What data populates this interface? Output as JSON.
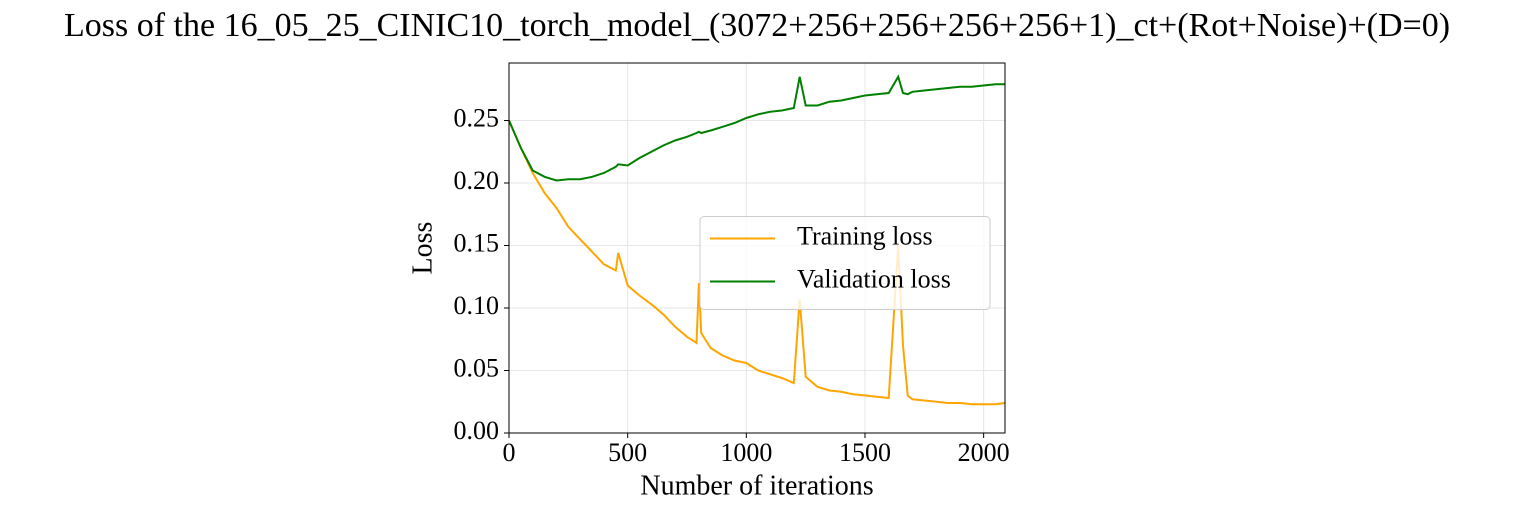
{
  "chart_data": {
    "type": "line",
    "title": "Loss of the 16_05_25_CINIC10_torch_model_(3072+256+256+256+256+1)_ct+(Rot+Noise)+(D=0)",
    "xlabel": "Number of iterations",
    "ylabel": "Loss",
    "x": [
      0,
      50,
      100,
      150,
      200,
      250,
      300,
      350,
      400,
      450,
      460,
      500,
      550,
      600,
      650,
      700,
      750,
      790,
      800,
      810,
      850,
      900,
      950,
      1000,
      1050,
      1100,
      1150,
      1200,
      1225,
      1250,
      1300,
      1350,
      1400,
      1450,
      1500,
      1550,
      1600,
      1640,
      1660,
      1680,
      1700,
      1750,
      1800,
      1850,
      1900,
      1950,
      2000,
      2050,
      2090
    ],
    "series": [
      {
        "name": "Training loss",
        "color": "#ffa500",
        "values": [
          0.25,
          0.228,
          0.208,
          0.192,
          0.18,
          0.165,
          0.155,
          0.145,
          0.135,
          0.13,
          0.144,
          0.118,
          0.11,
          0.103,
          0.095,
          0.085,
          0.077,
          0.072,
          0.12,
          0.08,
          0.068,
          0.062,
          0.058,
          0.056,
          0.05,
          0.047,
          0.044,
          0.04,
          0.107,
          0.045,
          0.037,
          0.034,
          0.033,
          0.031,
          0.03,
          0.029,
          0.028,
          0.15,
          0.07,
          0.03,
          0.027,
          0.026,
          0.025,
          0.024,
          0.024,
          0.023,
          0.023,
          0.023,
          0.024
        ]
      },
      {
        "name": "Validation loss",
        "color": "#008000",
        "values": [
          0.25,
          0.228,
          0.21,
          0.205,
          0.202,
          0.203,
          0.203,
          0.205,
          0.208,
          0.213,
          0.215,
          0.214,
          0.22,
          0.225,
          0.23,
          0.234,
          0.237,
          0.24,
          0.241,
          0.24,
          0.242,
          0.245,
          0.248,
          0.252,
          0.255,
          0.257,
          0.258,
          0.26,
          0.285,
          0.262,
          0.262,
          0.265,
          0.266,
          0.268,
          0.27,
          0.271,
          0.272,
          0.285,
          0.272,
          0.271,
          0.273,
          0.274,
          0.275,
          0.276,
          0.277,
          0.277,
          0.278,
          0.279,
          0.279
        ]
      }
    ],
    "xlim": [
      0,
      2090
    ],
    "ylim": [
      0,
      0.296
    ],
    "xticks": [
      0,
      500,
      1000,
      1500,
      2000
    ],
    "yticks": [
      {
        "value": 0,
        "label": "0.00"
      },
      {
        "value": 0.05,
        "label": "0.05"
      },
      {
        "value": 0.1,
        "label": "0.10"
      },
      {
        "value": 0.15,
        "label": "0.15"
      },
      {
        "value": 0.2,
        "label": "0.20"
      },
      {
        "value": 0.25,
        "label": "0.25"
      }
    ],
    "grid": true,
    "legend": "center right"
  }
}
